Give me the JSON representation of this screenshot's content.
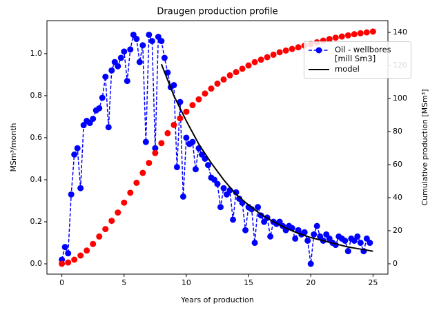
{
  "chart_data": {
    "type": "line",
    "title": "Draugen production profile",
    "xlabel": "Years of production",
    "ylabel": "MSm³/month",
    "y2label": "Cumulative production [MSm³]",
    "xlim": [
      -1.2,
      26.2
    ],
    "xticks": [
      0,
      5,
      10,
      15,
      20,
      25
    ],
    "ylim": [
      -0.049,
      1.157
    ],
    "yticks": [
      {
        "value": 0,
        "label": "0.0"
      },
      0.2,
      0.4,
      0.6,
      0.8,
      {
        "value": 1,
        "label": "1.0"
      }
    ],
    "y2lim": [
      -6.25,
      147.1
    ],
    "y2ticks": [
      0,
      20,
      40,
      60,
      80,
      100,
      120,
      140
    ],
    "series": [
      {
        "name": "Oil -  wellbores\n[mill Sm3]",
        "color": "#0000ff",
        "style": "dashed-markers",
        "x": [
          0,
          0.25,
          0.5,
          0.75,
          1,
          1.25,
          1.5,
          1.75,
          2,
          2.25,
          2.5,
          2.75,
          3,
          3.25,
          3.5,
          3.75,
          4,
          4.25,
          4.5,
          4.75,
          5,
          5.25,
          5.5,
          5.75,
          6,
          6.25,
          6.5,
          6.75,
          7,
          7.25,
          7.5,
          7.75,
          8,
          8.25,
          8.5,
          8.75,
          9,
          9.25,
          9.5,
          9.75,
          10,
          10.25,
          10.5,
          10.75,
          11,
          11.25,
          11.5,
          11.75,
          12,
          12.25,
          12.5,
          12.75,
          13,
          13.25,
          13.5,
          13.75,
          14,
          14.25,
          14.5,
          14.75,
          15,
          15.25,
          15.5,
          15.75,
          16,
          16.25,
          16.5,
          16.75,
          17,
          17.25,
          17.5,
          17.75,
          18,
          18.25,
          18.5,
          18.75,
          19,
          19.25,
          19.5,
          19.75,
          20,
          20.25,
          20.5,
          20.75,
          21,
          21.25,
          21.5,
          21.75,
          22,
          22.25,
          22.5,
          22.75,
          23,
          23.25,
          23.5,
          23.75,
          24,
          24.25,
          24.5,
          24.75
        ],
        "values": [
          0.02,
          0.08,
          0.05,
          0.33,
          0.52,
          0.55,
          0.36,
          0.66,
          0.68,
          0.67,
          0.69,
          0.73,
          0.74,
          0.79,
          0.89,
          0.65,
          0.92,
          0.96,
          0.94,
          0.98,
          1.01,
          0.87,
          1.02,
          1.09,
          1.07,
          0.96,
          1.04,
          0.58,
          1.09,
          1.06,
          0.55,
          1.08,
          1.06,
          0.98,
          0.91,
          0.84,
          0.85,
          0.46,
          0.77,
          0.32,
          0.6,
          0.57,
          0.58,
          0.45,
          0.55,
          0.52,
          0.5,
          0.47,
          0.41,
          0.4,
          0.38,
          0.27,
          0.36,
          0.33,
          0.35,
          0.21,
          0.34,
          0.31,
          0.29,
          0.16,
          0.27,
          0.26,
          0.1,
          0.27,
          0.23,
          0.2,
          0.22,
          0.13,
          0.2,
          0.19,
          0.2,
          0.18,
          0.16,
          0.18,
          0.17,
          0.12,
          0.16,
          0.14,
          0.15,
          0.11,
          0,
          0.14,
          0.18,
          0.13,
          0.11,
          0.14,
          0.12,
          0.1,
          0.09,
          0.13,
          0.12,
          0.11,
          0.06,
          0.12,
          0.11,
          0.13,
          0.1,
          0.06,
          0.12,
          0.1
        ]
      },
      {
        "name": "model",
        "color": "#000000",
        "style": "solid",
        "x": [
          8,
          9,
          10,
          11,
          12,
          13,
          14,
          15,
          16,
          17,
          18,
          19,
          20,
          21,
          22,
          23,
          24,
          25
        ],
        "values": [
          0.95,
          0.8,
          0.68,
          0.57,
          0.48,
          0.4,
          0.33,
          0.28,
          0.235,
          0.2,
          0.17,
          0.145,
          0.125,
          0.11,
          0.095,
          0.08,
          0.07,
          0.06
        ]
      },
      {
        "color": "#ff0000",
        "style": "markers",
        "axis": "y2",
        "x": [
          0,
          0.5,
          1,
          1.5,
          2,
          2.5,
          3,
          3.5,
          4,
          4.5,
          5,
          5.5,
          6,
          6.5,
          7,
          7.5,
          8,
          8.5,
          9,
          9.5,
          10,
          10.5,
          11,
          11.5,
          12,
          12.5,
          13,
          13.5,
          14,
          14.5,
          15,
          15.5,
          16,
          16.5,
          17,
          17.5,
          18,
          18.5,
          19,
          19.5,
          20,
          20.5,
          21,
          21.5,
          22,
          22.5,
          23,
          23.5,
          24,
          24.5,
          25
        ],
        "values": [
          0,
          0.8,
          2.5,
          5,
          8,
          12,
          16.5,
          21,
          26,
          31,
          37,
          43,
          49,
          55,
          61,
          67,
          73,
          79,
          84,
          88,
          92,
          96,
          99.5,
          103,
          106,
          109,
          111.5,
          114,
          116,
          118,
          120,
          122,
          123.5,
          125,
          126.5,
          128,
          129,
          130,
          131,
          132,
          133,
          134,
          135,
          136,
          136.8,
          137.5,
          138.2,
          138.9,
          139.5,
          140,
          140.5
        ]
      }
    ]
  }
}
